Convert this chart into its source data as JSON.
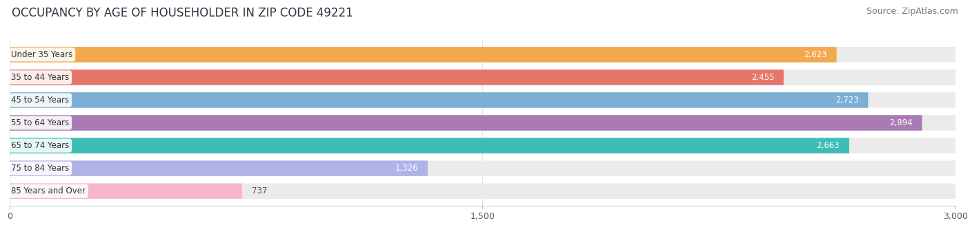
{
  "title": "OCCUPANCY BY AGE OF HOUSEHOLDER IN ZIP CODE 49221",
  "source": "Source: ZipAtlas.com",
  "categories": [
    "Under 35 Years",
    "35 to 44 Years",
    "45 to 54 Years",
    "55 to 64 Years",
    "65 to 74 Years",
    "75 to 84 Years",
    "85 Years and Over"
  ],
  "values": [
    2623,
    2455,
    2723,
    2894,
    2663,
    1326,
    737
  ],
  "bar_colors": [
    "#F5A94E",
    "#E8756A",
    "#7BAFD4",
    "#A97BB5",
    "#3DBDB5",
    "#B0B3E8",
    "#F5B8C8"
  ],
  "xlim": [
    0,
    3000
  ],
  "xticks": [
    0,
    1500,
    3000
  ],
  "xtick_labels": [
    "0",
    "1,500",
    "3,000"
  ],
  "background_color": "#ffffff",
  "bar_background_color": "#ebebeb",
  "title_fontsize": 12,
  "source_fontsize": 9,
  "label_fontsize": 8.5,
  "value_fontsize": 8.5
}
